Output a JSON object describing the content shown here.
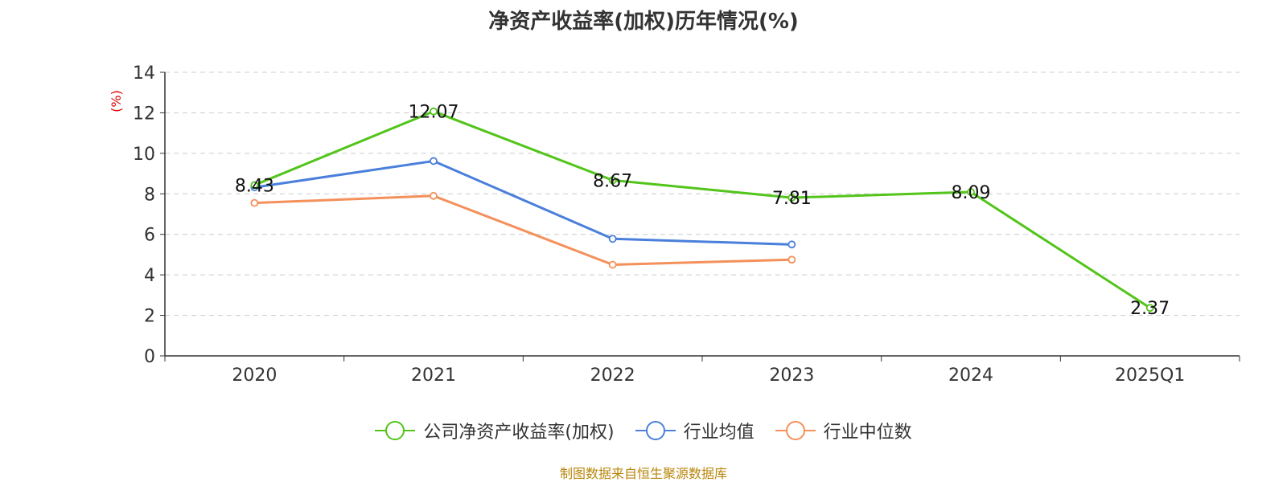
{
  "chart_data": {
    "type": "line",
    "title": "净资产收益率(加权)历年情况(%)",
    "ylabel": "(%)",
    "xlabel": "",
    "categories": [
      "2020",
      "2021",
      "2022",
      "2023",
      "2024",
      "2025Q1"
    ],
    "ylim": [
      0,
      14
    ],
    "yticks": [
      0,
      2,
      4,
      6,
      8,
      10,
      12,
      14
    ],
    "grid": true,
    "legend_position": "bottom",
    "series": [
      {
        "name": "公司净资产收益率(加权)",
        "color": "#52c41a",
        "values": [
          8.43,
          12.07,
          8.67,
          7.81,
          8.09,
          2.37
        ],
        "labels": [
          "8.43",
          "12.07",
          "8.67",
          "7.81",
          "8.09",
          "2.37"
        ]
      },
      {
        "name": "行业均值",
        "color": "#4a7fdc",
        "values": [
          8.32,
          9.62,
          5.78,
          5.5,
          null,
          null
        ]
      },
      {
        "name": "行业中位数",
        "color": "#f4905a",
        "values": [
          7.55,
          7.9,
          4.5,
          4.75,
          null,
          null
        ]
      }
    ]
  },
  "source_note": "制图数据来自恒生聚源数据库"
}
